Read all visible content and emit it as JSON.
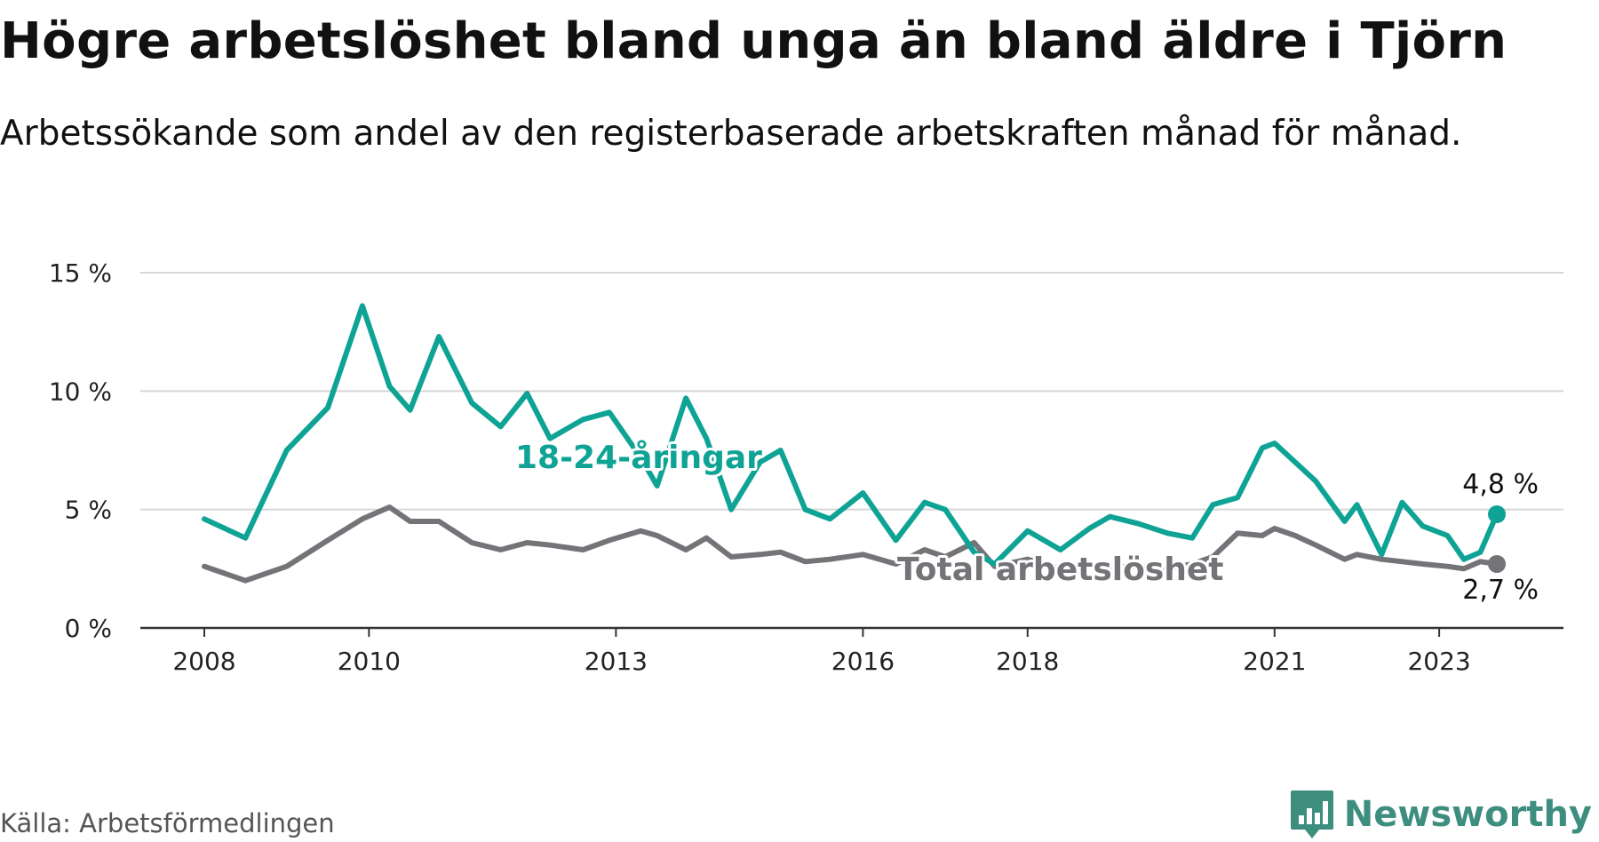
{
  "title": "Högre arbetslöshet bland unga än bland äldre i Tjörn",
  "subtitle": "Arbetssökande som andel av den registerbaserade arbetskraften månad för månad.",
  "source": "Källa: Arbetsförmedlingen",
  "brand": {
    "name": "Newsworthy",
    "logo_icon": "bar-chart-icon",
    "color": "#3e8e80"
  },
  "colors": {
    "youth": "#0ea395",
    "total": "#737378",
    "grid": "#d6d6d6",
    "axis": "#333333"
  },
  "chart_data": {
    "type": "line",
    "title": "Högre arbetslöshet bland unga än bland äldre i Tjörn",
    "xlabel": "",
    "ylabel": "",
    "ylim": [
      0,
      15
    ],
    "yticks": [
      0,
      5,
      10,
      15
    ],
    "ytick_labels": [
      "0 %",
      "5 %",
      "10 %",
      "15 %"
    ],
    "xticks": [
      2008,
      2010,
      2013,
      2016,
      2018,
      2021,
      2023
    ],
    "xtick_labels": [
      "2008",
      "2010",
      "2013",
      "2016",
      "2018",
      "2021",
      "2023"
    ],
    "grid": true,
    "series": [
      {
        "name": "18-24-åringar",
        "color": "#0ea395",
        "label_position": "middle",
        "end_label": "4,8 %",
        "x": [
          2008.0,
          2008.5,
          2009.0,
          2009.5,
          2009.92,
          2010.25,
          2010.5,
          2010.85,
          2011.25,
          2011.6,
          2011.92,
          2012.2,
          2012.6,
          2012.92,
          2013.3,
          2013.5,
          2013.85,
          2014.1,
          2014.4,
          2014.75,
          2015.0,
          2015.3,
          2015.6,
          2016.0,
          2016.4,
          2016.75,
          2017.0,
          2017.35,
          2017.6,
          2018.0,
          2018.4,
          2018.75,
          2019.0,
          2019.35,
          2019.7,
          2020.0,
          2020.25,
          2020.55,
          2020.85,
          2021.0,
          2021.25,
          2021.5,
          2021.85,
          2022.0,
          2022.3,
          2022.55,
          2022.8,
          2023.1,
          2023.3,
          2023.5,
          2023.7
        ],
        "y": [
          4.6,
          3.8,
          7.5,
          9.3,
          13.6,
          10.2,
          9.2,
          12.3,
          9.5,
          8.5,
          9.9,
          8.0,
          8.8,
          9.1,
          7.2,
          6.0,
          9.7,
          8.0,
          5.0,
          7.0,
          7.5,
          5.0,
          4.6,
          5.7,
          3.7,
          5.3,
          5.0,
          3.2,
          2.7,
          4.1,
          3.3,
          4.2,
          4.7,
          4.4,
          4.0,
          3.8,
          5.2,
          5.5,
          7.6,
          7.8,
          7.0,
          6.2,
          4.5,
          5.2,
          3.1,
          5.3,
          4.3,
          3.9,
          2.9,
          3.2,
          4.8
        ]
      },
      {
        "name": "Total arbetslöshet",
        "color": "#737378",
        "label_position": "lower-middle",
        "end_label": "2,7 %",
        "x": [
          2008.0,
          2008.5,
          2009.0,
          2009.5,
          2009.92,
          2010.25,
          2010.5,
          2010.85,
          2011.25,
          2011.6,
          2011.92,
          2012.2,
          2012.6,
          2012.92,
          2013.3,
          2013.5,
          2013.85,
          2014.1,
          2014.4,
          2014.75,
          2015.0,
          2015.3,
          2015.6,
          2016.0,
          2016.4,
          2016.75,
          2017.0,
          2017.35,
          2017.6,
          2018.0,
          2018.4,
          2018.75,
          2019.0,
          2019.35,
          2019.7,
          2020.0,
          2020.25,
          2020.55,
          2020.85,
          2021.0,
          2021.25,
          2021.5,
          2021.85,
          2022.0,
          2022.3,
          2022.55,
          2022.8,
          2023.1,
          2023.3,
          2023.5,
          2023.7
        ],
        "y": [
          2.6,
          2.0,
          2.6,
          3.7,
          4.6,
          5.1,
          4.5,
          4.5,
          3.6,
          3.3,
          3.6,
          3.5,
          3.3,
          3.7,
          4.1,
          3.9,
          3.3,
          3.8,
          3.0,
          3.1,
          3.2,
          2.8,
          2.9,
          3.1,
          2.7,
          3.3,
          3.0,
          3.6,
          2.6,
          2.9,
          2.5,
          2.6,
          2.6,
          2.6,
          2.5,
          2.7,
          3.0,
          4.0,
          3.9,
          4.2,
          3.9,
          3.5,
          2.9,
          3.1,
          2.9,
          2.8,
          2.7,
          2.6,
          2.5,
          2.8,
          2.7
        ]
      }
    ]
  }
}
